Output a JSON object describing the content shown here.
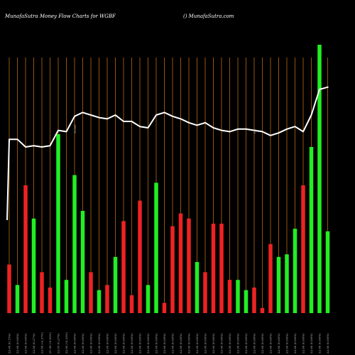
{
  "header": {
    "title": "MunafaSutra  Money Flow  Charts for WGBF",
    "site": "() MunafaSutra.com"
  },
  "colors": {
    "background": "#000000",
    "up": "#22ee22",
    "down": "#ee2222",
    "grid": "#b86a10",
    "line": "#ffffff"
  },
  "chart_data": {
    "type": "bar",
    "title": "MunafaSutra  Money Flow  Charts for WGBF",
    "ylim": [
      0,
      100
    ],
    "categories": [
      "22.00 (0.15%)",
      "22.00 (0.00%)",
      "22.00 (0.00%)",
      "22.06 (0.27%)",
      "22.00 (-0.27%)",
      "21.99 (-0.05%)",
      "22.05 (0.27%)",
      "22.00 (-0.23%)",
      "22.00 (0.00%)",
      "22.00 (0.00%)",
      "22.00 (0.00%)",
      "22.00 (0.00%)",
      "22.00 (0.00%)",
      "22.00 (0.00%)",
      "22.00 (0.00%)",
      "22.00 (0.00%)",
      "22.00 (0.00%)",
      "22.00 (0.00%)",
      "22.00 (0.00%)",
      "22.00 (0.00%)",
      "22.00 (0.00%)",
      "22.00 (0.00%)",
      "22.00 (0.00%)",
      "22.00 (0.00%)",
      "22.00 (0.00%)",
      "22.00 (0.00%)",
      "22.00 (0.00%)",
      "22.00 (0.00%)",
      "22.00 (0.00%)",
      "22.00 (0.00%)",
      "22.00 (0.00%)",
      "22.00 (0.00%)",
      "22.00 (0.00%)",
      "22.00 (0.00%)",
      "22.00 (0.00%)",
      "22.00 (0.00%)",
      "22.00 (0.00%)",
      "22.00 (0.00%)",
      "22.00 (0.00%)",
      "22.00 (0.00%)"
    ],
    "values": [
      19,
      11,
      50,
      37,
      16,
      10,
      70,
      13,
      54,
      40,
      16,
      9,
      11,
      22,
      36,
      7,
      44,
      11,
      51,
      4,
      34,
      39,
      37,
      20,
      16,
      35,
      35,
      13,
      13,
      9,
      10,
      2,
      27,
      22,
      23,
      33,
      50,
      65,
      105,
      32
    ],
    "direction": [
      "down",
      "up",
      "down",
      "up",
      "down",
      "down",
      "up",
      "up",
      "up",
      "up",
      "down",
      "up",
      "down",
      "up",
      "down",
      "down",
      "down",
      "up",
      "up",
      "down",
      "down",
      "down",
      "down",
      "up",
      "down",
      "down",
      "down",
      "down",
      "up",
      "up",
      "down",
      "down",
      "down",
      "up",
      "up",
      "up",
      "down",
      "up",
      "up",
      "up"
    ],
    "line": [
      68,
      68,
      65,
      65.5,
      65,
      65.5,
      71.5,
      71,
      77,
      78.5,
      77.5,
      76.5,
      76,
      77.5,
      75,
      75,
      73,
      72.5,
      77.5,
      78.5,
      77,
      76,
      74.5,
      73.5,
      74.5,
      72.5,
      71.5,
      71,
      72,
      72,
      71.5,
      71,
      69.5,
      70.5,
      72,
      73,
      71,
      77.5,
      87.5,
      88.5
    ],
    "marker_labels": [
      {
        "index": 8,
        "text": "WGBF"
      },
      {
        "index": 30,
        "text": "0%"
      }
    ]
  }
}
